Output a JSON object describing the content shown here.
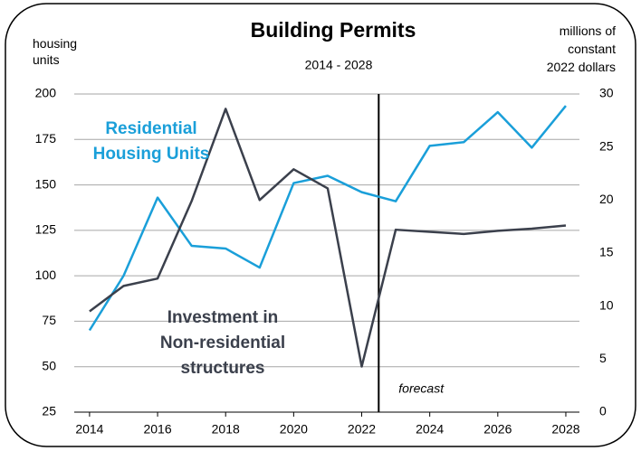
{
  "chart_data": {
    "type": "line",
    "title": "Building Permits",
    "subtitle": "2014 - 2028",
    "y_label": "housing\nunits",
    "y2_label": "millions of\nconstant\n2022 dollars",
    "annotation": "forecast",
    "forecast_x": 2022.5,
    "x": [
      2014,
      2015,
      2016,
      2017,
      2018,
      2019,
      2020,
      2021,
      2022,
      2023,
      2024,
      2025,
      2026,
      2027,
      2028
    ],
    "xlim": [
      2013.55,
      2028.4
    ],
    "xticks": [
      2014,
      2016,
      2018,
      2020,
      2022,
      2024,
      2026,
      2028
    ],
    "ylim": [
      25,
      200
    ],
    "yticks": [
      25,
      50,
      75,
      100,
      125,
      150,
      175,
      200
    ],
    "y2lim": [
      0,
      30
    ],
    "y2ticks": [
      0,
      5,
      10,
      15,
      20,
      25,
      30
    ],
    "grid": true,
    "series": [
      {
        "name": "Residential\nHousing Units",
        "color": "#1a9fd9",
        "values": [
          70,
          100,
          143,
          116.5,
          115,
          104.5,
          151,
          155,
          146,
          141,
          171.5,
          173.5,
          190,
          170.5,
          193.5
        ]
      },
      {
        "name": "Investment in\nNon-residential\nstructures",
        "color": "#3b404c",
        "axis": "y2",
        "values": [
          9.5,
          11.9,
          12.6,
          19.9,
          28.6,
          20.0,
          22.9,
          21.1,
          4.3,
          17.2,
          17.0,
          16.8,
          17.1,
          17.3,
          17.6
        ]
      }
    ]
  }
}
